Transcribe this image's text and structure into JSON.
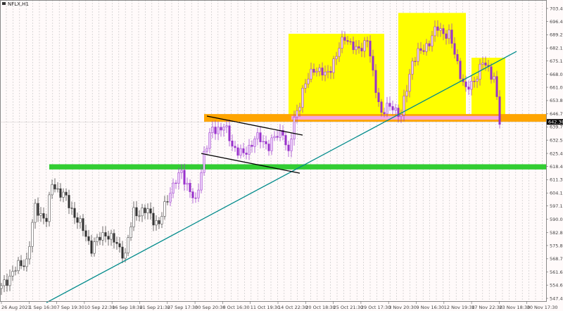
{
  "window": {
    "title": "NFLX,H1"
  },
  "chart_data": {
    "type": "candlestick",
    "symbol": "NFLX",
    "timeframe": "H1",
    "ylim": [
      547.46,
      706.0
    ],
    "y_ticks": [
      "703.420",
      "696.420",
      "689.280",
      "682.140",
      "675.140",
      "668.000",
      "661.000",
      "653.860",
      "646.720",
      "639.720",
      "632.580",
      "625.440",
      "618.440",
      "611.300",
      "604.160",
      "597.160",
      "590.020",
      "582.880",
      "575.880",
      "568.740",
      "561.600",
      "554.600",
      "547.460"
    ],
    "x_ticks": [
      "26 Aug 2021",
      "1 Sep 16:30",
      "7 Sep 19:30",
      "10 Sep 22:30",
      "16 Sep 18:30",
      "21 Sep 21:30",
      "27 Sep 17:30",
      "30 Sep 20:30",
      "6 Oct 16:30",
      "11 Oct 19:30",
      "14 Oct 22:30",
      "20 Oct 18:30",
      "25 Oct 21:30",
      "29 Oct 17:30",
      "3 Nov 20:30",
      "9 Nov 16:30",
      "12 Nov 19:30",
      "17 Nov 22:30",
      "23 Nov 18:30",
      "30 Nov 17:30"
    ],
    "current_price": "642.381",
    "price_path": [
      [
        0,
        552.8
      ],
      [
        4,
        562
      ],
      [
        9,
        567.9
      ],
      [
        12,
        596
      ],
      [
        16,
        590
      ],
      [
        18,
        609
      ],
      [
        22,
        603
      ],
      [
        27,
        590
      ],
      [
        32,
        575
      ],
      [
        37,
        583
      ],
      [
        44,
        571
      ],
      [
        47,
        594
      ],
      [
        52,
        594
      ],
      [
        56,
        587
      ],
      [
        60,
        606
      ],
      [
        64,
        615
      ],
      [
        66,
        609
      ],
      [
        69,
        598
      ],
      [
        72,
        626
      ],
      [
        75,
        638
      ],
      [
        79,
        640
      ],
      [
        82,
        630
      ],
      [
        86,
        624
      ],
      [
        90,
        634
      ],
      [
        95,
        630
      ],
      [
        100,
        638
      ],
      [
        102,
        624
      ],
      [
        104,
        643.6
      ],
      [
        107,
        658.8
      ],
      [
        111,
        672
      ],
      [
        115,
        667
      ],
      [
        119,
        677.7
      ],
      [
        122,
        689
      ],
      [
        126,
        680
      ],
      [
        130,
        687
      ],
      [
        132,
        667
      ],
      [
        135,
        647.4
      ],
      [
        139,
        651
      ],
      [
        142,
        645.5
      ],
      [
        146,
        675.7
      ],
      [
        150,
        681.5
      ],
      [
        155,
        692.8
      ],
      [
        159,
        689
      ],
      [
        162,
        674
      ],
      [
        165,
        658.8
      ],
      [
        167,
        662.6
      ],
      [
        171,
        674
      ],
      [
        175,
        667
      ],
      [
        177,
        641.7
      ]
    ],
    "zones": [
      {
        "name": "resistance-zone",
        "color": "#ffa500",
        "from_bar": 72,
        "to_bar": 194,
        "low": 642.5,
        "high": 646.6
      },
      {
        "name": "highlight-zone",
        "color": "#f4a6e0",
        "from_bar": 103,
        "to_bar": 177,
        "low": 643.6,
        "high": 645.6
      },
      {
        "name": "support-zone",
        "color": "#32cd32",
        "from_bar": 17,
        "to_bar": 194,
        "low": 616.8,
        "high": 619.6
      }
    ],
    "boxes": [
      {
        "color": "#ffff00",
        "from_bar": 102,
        "to_bar": 136,
        "low": 643.6,
        "high": 689.8
      },
      {
        "color": "#ffff00",
        "from_bar": 141,
        "to_bar": 165,
        "low": 643.6,
        "high": 701.0
      },
      {
        "color": "#ffff00",
        "from_bar": 167,
        "to_bar": 179,
        "low": 645.0,
        "high": 676.9
      }
    ],
    "lines": [
      {
        "name": "uptrend-line",
        "color": "#008b8b",
        "from": [
          16,
          545.2
        ],
        "to": [
          183,
          680.3
        ]
      },
      {
        "name": "channel-upper",
        "color": "#000000",
        "from": [
          73,
          645.5
        ],
        "to": [
          107,
          635.3
        ]
      },
      {
        "name": "channel-lower",
        "color": "#000000",
        "from": [
          71,
          625.4
        ],
        "to": [
          106,
          614.8
        ]
      }
    ],
    "colors": {
      "bull": "#ffffff",
      "bear": "#000000",
      "purple": "#9932cc",
      "grid": "#c0c0c0"
    }
  }
}
